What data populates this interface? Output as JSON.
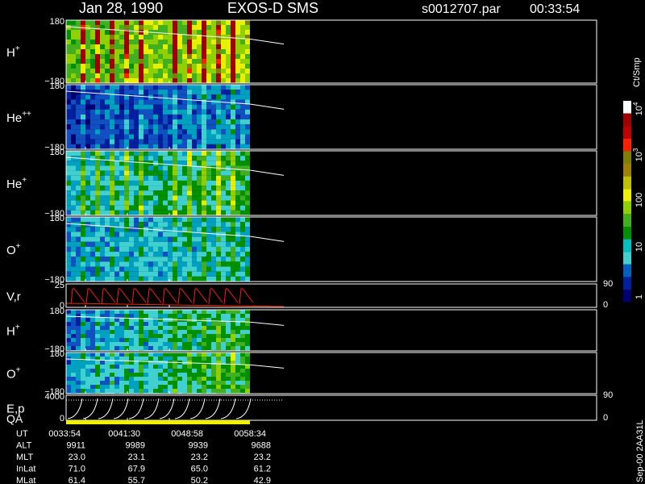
{
  "header": {
    "date": "Jan 28, 1990",
    "mission": "EXOS-D SMS",
    "file": "s0012707.par",
    "time": "00:33:54"
  },
  "panels": [
    {
      "label": "H",
      "sup": "+",
      "ticks": [
        "180",
        "−180"
      ]
    },
    {
      "label": "He",
      "sup": "++",
      "ticks": [
        "180",
        "−180"
      ]
    },
    {
      "label": "He",
      "sup": "+",
      "ticks": [
        "180",
        "−180"
      ]
    },
    {
      "label": "O",
      "sup": "+",
      "ticks": [
        "180",
        "−180"
      ]
    },
    {
      "label": "V,r",
      "ticks": [
        "25",
        "0"
      ],
      "right_ticks": [
        "90",
        "0"
      ]
    },
    {
      "label": "H",
      "sup": "+",
      "ticks": [
        "180",
        "−180"
      ]
    },
    {
      "label": "O",
      "sup": "+",
      "ticks": [
        "180",
        "−180"
      ]
    },
    {
      "label": "E,p",
      "ticks": [
        "4000",
        "0"
      ],
      "right_ticks": [
        "90",
        "0"
      ]
    }
  ],
  "qa_label": "QA",
  "colorbar": {
    "unit": "Ct/Smp",
    "labels": [
      {
        "base": "10",
        "sup": "4"
      },
      {
        "base": "10",
        "sup": "3"
      },
      {
        "base": "100"
      },
      {
        "base": "10"
      },
      {
        "base": "1"
      }
    ]
  },
  "footer": {
    "rows": [
      {
        "label": "UT",
        "values": [
          "0033:54",
          "0041:30",
          "0048:58",
          "0058:34"
        ]
      },
      {
        "label": "ALT",
        "values": [
          "9911",
          "9989",
          "9939",
          "9688"
        ]
      },
      {
        "label": "MLT",
        "values": [
          "23.0",
          "23.1",
          "23.2",
          "23.2"
        ]
      },
      {
        "label": "InLat",
        "values": [
          "71.0",
          "67.9",
          "65.0",
          "61.2"
        ]
      },
      {
        "label": "MLat",
        "values": [
          "61.4",
          "55.7",
          "50.2",
          "42.9"
        ]
      }
    ]
  },
  "side_note": "Sep-00 2AA31L"
}
